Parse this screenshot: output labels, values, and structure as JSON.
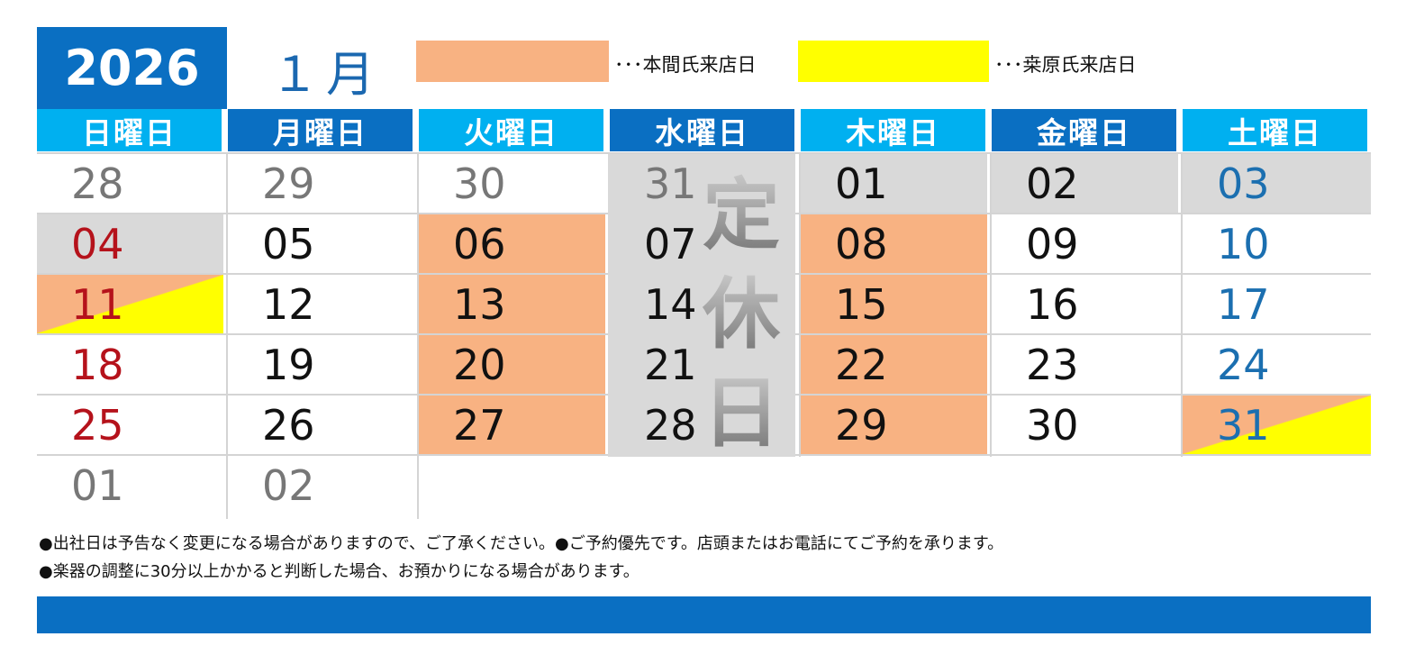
{
  "header": {
    "year": "2026",
    "month": "１月"
  },
  "legend": [
    {
      "text": "･･･本間氏来店日",
      "color": "#f8b282"
    },
    {
      "text": "･･･桒原氏来店日",
      "color": "#ffff00"
    }
  ],
  "weekdays": [
    "日曜日",
    "月曜日",
    "火曜日",
    "水曜日",
    "木曜日",
    "金曜日",
    "土曜日"
  ],
  "weekday_colors": [
    "#00b0f0",
    "#0a6fc2",
    "#00b0f0",
    "#0a6fc2",
    "#00b0f0",
    "#0a6fc2",
    "#00b0f0"
  ],
  "closed_day_label": [
    "定",
    "休",
    "日"
  ],
  "weeks": [
    [
      "28",
      "29",
      "30",
      "31",
      "01",
      "02",
      "03"
    ],
    [
      "04",
      "05",
      "06",
      "07",
      "08",
      "09",
      "10"
    ],
    [
      "11",
      "12",
      "13",
      "14",
      "15",
      "16",
      "17"
    ],
    [
      "18",
      "19",
      "20",
      "21",
      "22",
      "23",
      "24"
    ],
    [
      "25",
      "26",
      "27",
      "28",
      "29",
      "30",
      "31"
    ],
    [
      "01",
      "02"
    ]
  ],
  "cell_styles": [
    [
      "w:gray",
      "w:gray",
      "w:gray",
      "c:gray",
      "g:black",
      "g:black",
      "g:blue"
    ],
    [
      "g:red",
      "w:black",
      "o:black",
      "c:black",
      "o:black",
      "w:black",
      "w:blue"
    ],
    [
      "oy:red",
      "w:black",
      "o:black",
      "c:black",
      "o:black",
      "w:black",
      "w:blue"
    ],
    [
      "w:red",
      "w:black",
      "o:black",
      "c:black",
      "o:black",
      "w:black",
      "w:blue"
    ],
    [
      "w:red",
      "w:black",
      "o:black",
      "c:black",
      "o:black",
      "w:black",
      "oy:blue"
    ],
    [
      "w:gray",
      "w:gray"
    ]
  ],
  "notes": [
    "●出社日は予告なく変更になる場合がありますので、ご了承ください。●ご予約優先です。店頭またはお電話にてご予約を承ります。",
    "●楽器の調整に30分以上かかると判断した場合、お預かりになる場合があります。"
  ]
}
